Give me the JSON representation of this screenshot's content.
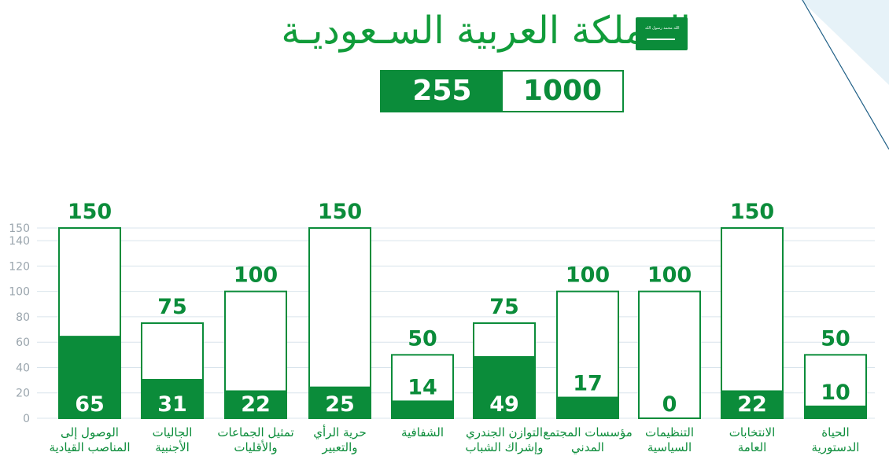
{
  "header": {
    "title": "المملكة العربية السـعوديـة",
    "flag_text": "لا إله إلا الله محمد رسول الله"
  },
  "scorebox": {
    "achieved": "255",
    "total": "1000"
  },
  "colors": {
    "green": "#0b8c3a",
    "title_green": "#119c3a",
    "grid": "#d9e4ec",
    "tick": "#9aa5ad",
    "deco_light": "#e6f2f8"
  },
  "chart_data": {
    "type": "bar",
    "categories": [
      "الوصول إلى المناصب القيادية",
      "الجاليات الأجنبية",
      "تمثيل الجماعات والأقليات",
      "حرية الرأي والتعبير",
      "الشفافية",
      "التوازن الجندري وإشراك الشباب",
      "مؤسسات المجتمع المدني",
      "التنظيمات السياسية",
      "الانتخابات العامة",
      "الحياة الدستورية"
    ],
    "series": [
      {
        "values": [
          150,
          75,
          100,
          150,
          50,
          75,
          100,
          100,
          150,
          50
        ]
      },
      {
        "values": [
          65,
          31,
          22,
          25,
          14,
          49,
          17,
          0,
          22,
          10
        ]
      }
    ],
    "yticks": [
      0,
      20,
      40,
      60,
      80,
      100,
      120,
      140,
      150
    ],
    "ylim": [
      0,
      150
    ],
    "grid": true
  }
}
